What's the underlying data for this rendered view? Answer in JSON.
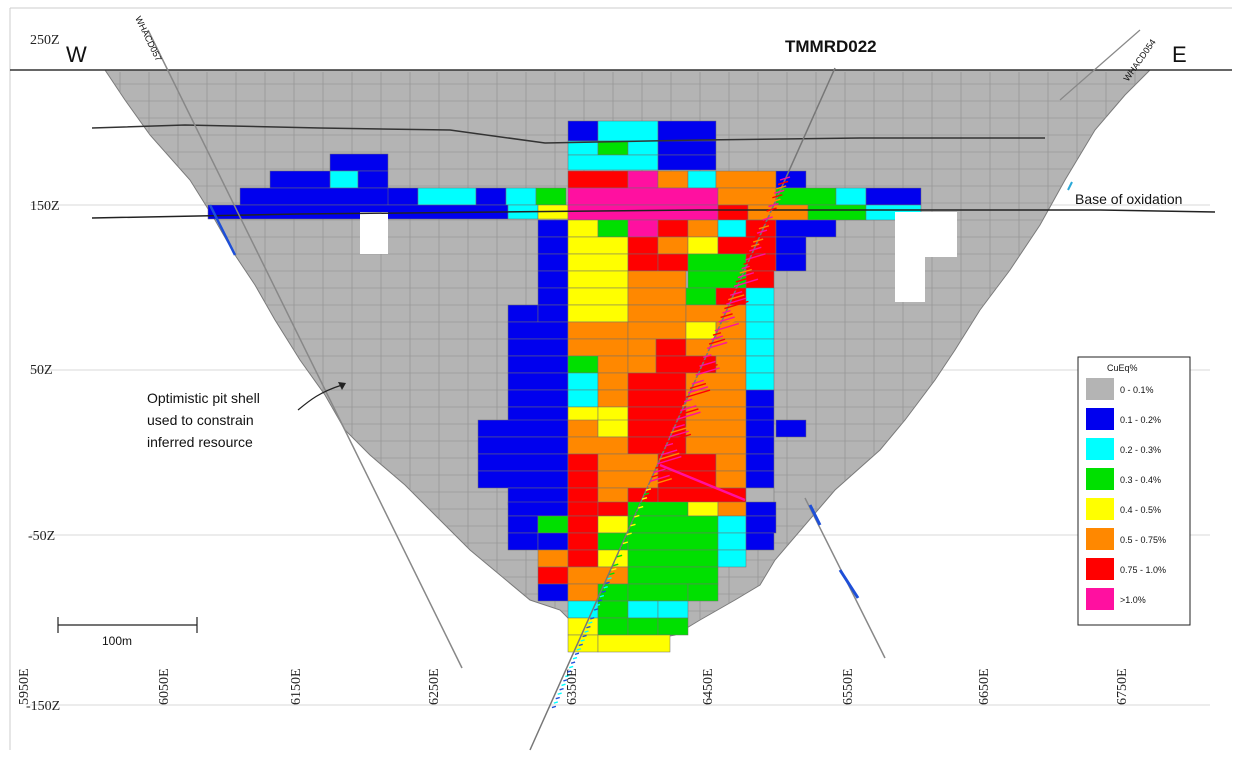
{
  "section": {
    "west_label": "W",
    "east_label": "E",
    "drillhole_main": "TMMRD022",
    "drillhole_west": "WHACD057",
    "drillhole_east": "WHACD054",
    "oxidation_label": "Base of oxidation",
    "pit_note": [
      "Optimistic pit shell",
      "used to constrain",
      "inferred resource"
    ],
    "elevations": [
      "250Z",
      "150Z",
      "50Z",
      "-50Z",
      "-150Z"
    ],
    "eastings": [
      "5950E",
      "6050E",
      "6150E",
      "6250E",
      "6350E",
      "6450E",
      "6550E",
      "6650E",
      "6750E"
    ],
    "scale_label": "100m"
  },
  "legend": {
    "title": "CuEq%",
    "items": [
      {
        "label": "0 - 0.1%",
        "color": "#b4b4b4"
      },
      {
        "label": "0.1 - 0.2%",
        "color": "#0000ee"
      },
      {
        "label": "0.2 - 0.3%",
        "color": "#00ffff"
      },
      {
        "label": "0.3 - 0.4%",
        "color": "#00e000"
      },
      {
        "label": "0.4 - 0.5%",
        "color": "#ffff00"
      },
      {
        "label": "0.5 - 0.75%",
        "color": "#ff8800"
      },
      {
        "label": "0.75 - 1.0%",
        "color": "#ff0000"
      },
      {
        "label": ">1.0%",
        "color": "#ff10a0"
      }
    ]
  }
}
